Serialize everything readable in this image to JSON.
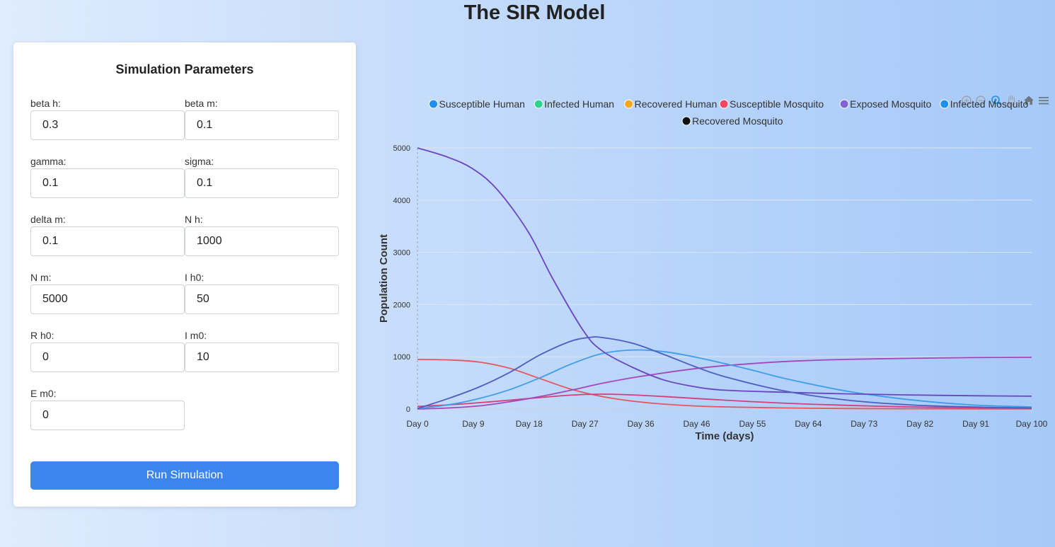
{
  "page": {
    "title": "The SIR Model"
  },
  "form": {
    "title": "Simulation Parameters",
    "fields": [
      {
        "label": "beta h:",
        "value": "0.3"
      },
      {
        "label": "beta m:",
        "value": "0.1"
      },
      {
        "label": "gamma:",
        "value": "0.1"
      },
      {
        "label": "sigma:",
        "value": "0.1"
      },
      {
        "label": "delta m:",
        "value": "0.1"
      },
      {
        "label": "N h:",
        "value": "1000"
      },
      {
        "label": "N m:",
        "value": "5000"
      },
      {
        "label": "I h0:",
        "value": "50"
      },
      {
        "label": "R h0:",
        "value": "0"
      },
      {
        "label": "I m0:",
        "value": "10"
      },
      {
        "label": "E m0:",
        "value": "0"
      }
    ],
    "run_label": "Run Simulation"
  },
  "toolbar": {
    "icons": [
      "zoom-in-icon",
      "zoom-out-icon",
      "selection-zoom-icon",
      "pan-hand-icon",
      "home-reset-icon",
      "menu-icon"
    ]
  },
  "chart_data": {
    "type": "line",
    "xlabel": "Time (days)",
    "ylabel": "Population Count",
    "ylim": [
      0,
      5000
    ],
    "yticks": [
      0,
      1000,
      2000,
      3000,
      4000,
      5000
    ],
    "xlim": [
      0,
      100
    ],
    "xticks": [
      "Day 0",
      "Day 9",
      "Day 18",
      "Day 27",
      "Day 36",
      "Day 46",
      "Day 55",
      "Day 64",
      "Day 73",
      "Day 82",
      "Day 91",
      "Day 100"
    ],
    "grid": true,
    "legend_position": "top",
    "series": [
      {
        "name": "Susceptible Human",
        "legend_color": "#1f8ef1",
        "line_color": "#e85560",
        "x": [
          0,
          5,
          10,
          15,
          20,
          25,
          30,
          35,
          40,
          45,
          50,
          60,
          70,
          80,
          90,
          100
        ],
        "y": [
          950,
          940,
          900,
          780,
          580,
          380,
          240,
          150,
          95,
          60,
          40,
          20,
          10,
          6,
          3,
          2
        ]
      },
      {
        "name": "Infected Human",
        "legend_color": "#2fd58f",
        "line_color": "#d53f7a",
        "x": [
          0,
          5,
          10,
          15,
          20,
          25,
          30,
          35,
          40,
          50,
          60,
          70,
          80,
          90,
          100
        ],
        "y": [
          50,
          80,
          120,
          170,
          220,
          265,
          285,
          270,
          240,
          170,
          110,
          70,
          40,
          25,
          15
        ]
      },
      {
        "name": "Recovered Human",
        "legend_color": "#f7a823",
        "line_color": "#a546bd",
        "x": [
          0,
          5,
          10,
          15,
          20,
          25,
          30,
          35,
          40,
          45,
          50,
          60,
          70,
          80,
          90,
          100
        ],
        "y": [
          0,
          20,
          60,
          140,
          240,
          360,
          490,
          600,
          690,
          770,
          830,
          910,
          950,
          970,
          985,
          990
        ]
      },
      {
        "name": "Susceptible Mosquito",
        "legend_color": "#f64560",
        "line_color": "#3f9ee8",
        "x": [
          0,
          5,
          10,
          15,
          20,
          25,
          30,
          35,
          40,
          45,
          50,
          55,
          60,
          70,
          80,
          90,
          100
        ],
        "y": [
          10,
          80,
          200,
          370,
          600,
          860,
          1060,
          1130,
          1100,
          1000,
          870,
          730,
          580,
          340,
          180,
          80,
          40
        ]
      },
      {
        "name": "Exposed Mosquito",
        "legend_color": "#8262d6",
        "line_color": "#6b45c0",
        "x": [
          0,
          5,
          9,
          13,
          18,
          22,
          27,
          30,
          35,
          40,
          45,
          50,
          60,
          70,
          80,
          90,
          100
        ],
        "y": [
          5000,
          4820,
          4600,
          4200,
          3400,
          2500,
          1500,
          1120,
          800,
          560,
          430,
          360,
          320,
          290,
          270,
          255,
          245
        ]
      },
      {
        "name": "Infected Mosquito",
        "legend_color": "#1f8ef1",
        "line_color": "#4d5ec0",
        "x": [
          0,
          5,
          10,
          15,
          20,
          25,
          28,
          30,
          35,
          40,
          45,
          50,
          60,
          70,
          80,
          90,
          100
        ],
        "y": [
          10,
          200,
          420,
          700,
          1040,
          1300,
          1370,
          1370,
          1260,
          1050,
          820,
          620,
          340,
          170,
          80,
          40,
          20
        ]
      },
      {
        "name": "Recovered Mosquito",
        "legend_color": "#111111",
        "line_color": "#111111",
        "x": [],
        "y": []
      }
    ]
  }
}
